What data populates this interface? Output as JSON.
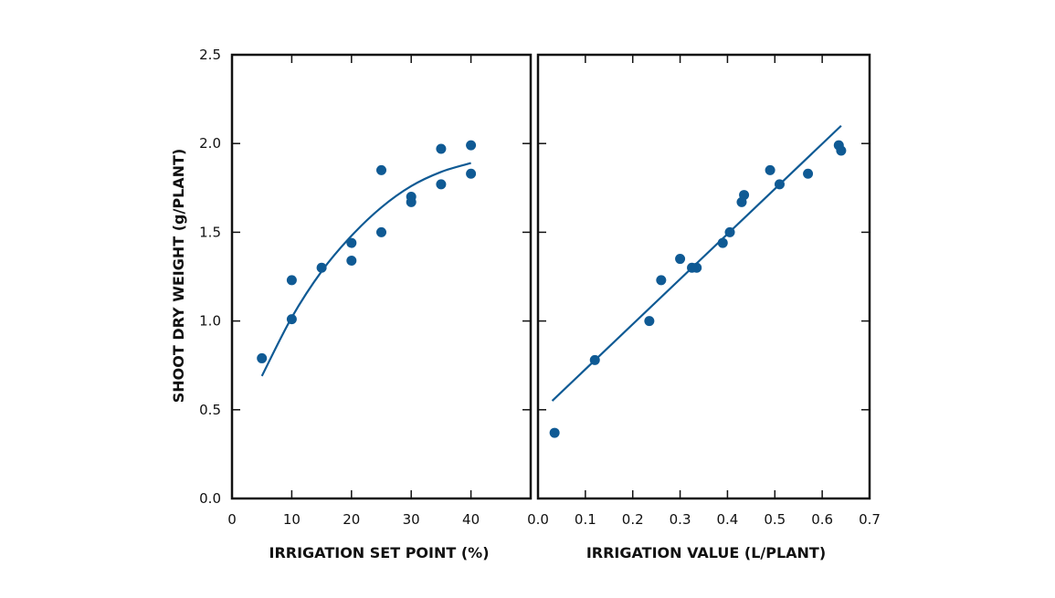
{
  "colors": {
    "point": "#0f5a94",
    "line": "#0f5a94",
    "axis": "#111111"
  },
  "ylabel": "SHOOT DRY WEIGHT (g/PLANT)",
  "chart_data": [
    {
      "type": "scatter",
      "xlabel": "IRRIGATION SET POINT (%)",
      "ylabel": "SHOOT DRY WEIGHT (g/PLANT)",
      "xlim": [
        0,
        50
      ],
      "ylim": [
        0,
        2.5
      ],
      "xticks": [
        0,
        10,
        20,
        30,
        40
      ],
      "xtick_labels": [
        "0",
        "10",
        "20",
        "30",
        "40"
      ],
      "yticks": [
        0,
        0.5,
        1.0,
        1.5,
        2.0,
        2.5
      ],
      "ytick_labels": [
        "0.0",
        "0.5",
        "1.0",
        "1.5",
        "2.0",
        "2.5"
      ],
      "series": [
        {
          "points": [
            [
              5,
              0.79
            ],
            [
              10,
              1.01
            ],
            [
              10,
              1.23
            ],
            [
              15,
              1.3
            ],
            [
              20,
              1.34
            ],
            [
              20,
              1.44
            ],
            [
              25,
              1.5
            ],
            [
              25,
              1.85
            ],
            [
              30,
              1.67
            ],
            [
              30,
              1.7
            ],
            [
              35,
              1.77
            ],
            [
              35,
              1.97
            ],
            [
              40,
              1.83
            ],
            [
              40,
              1.99
            ]
          ]
        }
      ],
      "fit": {
        "type": "quadratic",
        "x_range": [
          5,
          40
        ],
        "points": [
          [
            5,
            0.69
          ],
          [
            10,
            1.02
          ],
          [
            15,
            1.28
          ],
          [
            20,
            1.48
          ],
          [
            25,
            1.64
          ],
          [
            30,
            1.76
          ],
          [
            35,
            1.84
          ],
          [
            40,
            1.89
          ]
        ]
      }
    },
    {
      "type": "scatter",
      "xlabel": "IRRIGATION VALUE (L/PLANT)",
      "ylabel": "SHOOT DRY WEIGHT (g/PLANT)",
      "xlim": [
        0,
        0.7
      ],
      "ylim": [
        0,
        2.5
      ],
      "xticks": [
        0.0,
        0.1,
        0.2,
        0.3,
        0.4,
        0.5,
        0.6,
        0.7
      ],
      "xtick_labels": [
        "0.0",
        "0.1",
        "0.2",
        "0.3",
        "0.4",
        "0.5",
        "0.6",
        "0.7"
      ],
      "yticks": [
        0,
        0.5,
        1.0,
        1.5,
        2.0,
        2.5
      ],
      "ytick_labels": [
        "0.0",
        "0.5",
        "1.0",
        "1.5",
        "2.0",
        "2.5"
      ],
      "series": [
        {
          "points": [
            [
              0.035,
              0.37
            ],
            [
              0.12,
              0.78
            ],
            [
              0.235,
              1.0
            ],
            [
              0.26,
              1.23
            ],
            [
              0.3,
              1.35
            ],
            [
              0.325,
              1.3
            ],
            [
              0.335,
              1.3
            ],
            [
              0.39,
              1.44
            ],
            [
              0.405,
              1.5
            ],
            [
              0.43,
              1.67
            ],
            [
              0.435,
              1.71
            ],
            [
              0.49,
              1.85
            ],
            [
              0.51,
              1.77
            ],
            [
              0.57,
              1.83
            ],
            [
              0.635,
              1.99
            ],
            [
              0.64,
              1.96
            ]
          ]
        }
      ],
      "fit": {
        "type": "linear",
        "points": [
          [
            0.03,
            0.55
          ],
          [
            0.64,
            2.1
          ]
        ]
      }
    }
  ]
}
